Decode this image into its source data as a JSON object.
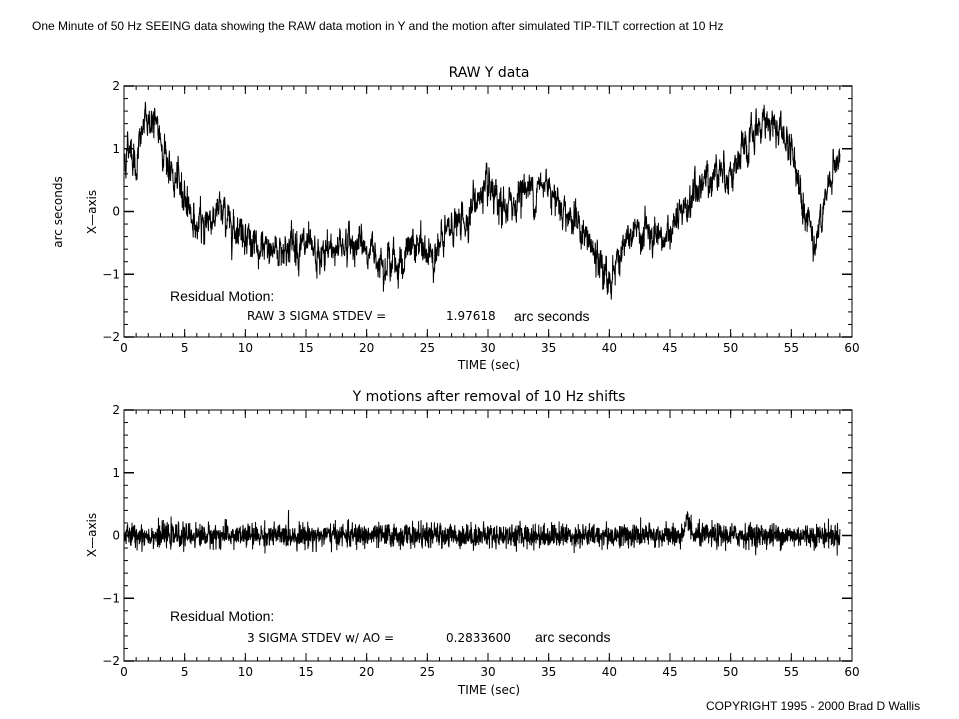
{
  "page_title": "One Minute of 50 Hz SEEING data showing the RAW data motion in Y and the motion after simulated TIP-TILT correction at  10 Hz",
  "copyright": "COPYRIGHT 1995 - 2000   Brad D Wallis",
  "chart_data": [
    {
      "type": "line",
      "title": "RAW Y data",
      "xlabel": "TIME  (sec)",
      "ylabel": "X—axis",
      "ylabel_outer": "arc seconds",
      "xlim": [
        0,
        60
      ],
      "ylim": [
        -2,
        2
      ],
      "x_ticks": [
        "0",
        "5",
        "10",
        "15",
        "20",
        "25",
        "30",
        "35",
        "40",
        "45",
        "50",
        "55",
        "60"
      ],
      "y_ticks": [
        "−2",
        "−1",
        "0",
        "1",
        "2"
      ],
      "series": [
        {
          "x": [
            0,
            0.5,
            1,
            1.5,
            2,
            3,
            4,
            5,
            6,
            7,
            8,
            9,
            10,
            11,
            12,
            13,
            14,
            15,
            16,
            17,
            18,
            19,
            20,
            21,
            22,
            23,
            24,
            25,
            26,
            27,
            28,
            29,
            30,
            31,
            32,
            33,
            34,
            35,
            36,
            37,
            38,
            39,
            40,
            41,
            42,
            43,
            44,
            45,
            46,
            47,
            48,
            49,
            50,
            51,
            52,
            53,
            54,
            55,
            56,
            57,
            58,
            59
          ],
          "values": [
            0.8,
            1.1,
            0.7,
            1.3,
            1.5,
            1.2,
            0.5,
            0.3,
            -0.3,
            -0.1,
            0.0,
            -0.2,
            -0.3,
            -0.7,
            -0.6,
            -0.6,
            -0.5,
            -0.6,
            -0.8,
            -0.6,
            -0.5,
            -0.5,
            -0.6,
            -0.7,
            -0.8,
            -0.8,
            -0.5,
            -0.7,
            -0.6,
            -0.2,
            -0.2,
            0.2,
            0.3,
            0.0,
            0.1,
            0.4,
            0.3,
            0.5,
            0.1,
            -0.1,
            -0.4,
            -0.8,
            -1.1,
            -0.6,
            -0.4,
            -0.3,
            -0.6,
            -0.3,
            -0.1,
            0.3,
            0.5,
            0.7,
            0.6,
            0.9,
            1.2,
            1.5,
            1.3,
            1.0,
            0.2,
            -0.5,
            0.3,
            1.0
          ]
        }
      ],
      "annotations": {
        "label": "Residual Motion:",
        "stat_label": "RAW 3 SIGMA STDEV =",
        "stat_value": "1.97618",
        "unit": "arc seconds"
      }
    },
    {
      "type": "line",
      "title": "Y motions after removal of 10 Hz shifts",
      "xlabel": "TIME  (sec)",
      "ylabel": "X—axis",
      "xlim": [
        0,
        60
      ],
      "ylim": [
        -2,
        2
      ],
      "x_ticks": [
        "0",
        "5",
        "10",
        "15",
        "20",
        "25",
        "30",
        "35",
        "40",
        "45",
        "50",
        "55",
        "60"
      ],
      "y_ticks": [
        "−2",
        "−1",
        "0",
        "1",
        "2"
      ],
      "series": [
        {
          "x": [
            0,
            5,
            10,
            15,
            20,
            25,
            30,
            35,
            40,
            45,
            46.5,
            50,
            55,
            59
          ],
          "values": [
            0.0,
            0.0,
            0.0,
            0.0,
            0.0,
            0.0,
            0.0,
            0.0,
            0.0,
            0.0,
            0.3,
            0.0,
            0.0,
            0.0
          ],
          "stdev": 0.095
        }
      ],
      "annotations": {
        "label": "Residual Motion:",
        "stat_label": "3 SIGMA STDEV w/ AO =",
        "stat_value": "0.2833600",
        "unit": "arc seconds"
      }
    }
  ]
}
